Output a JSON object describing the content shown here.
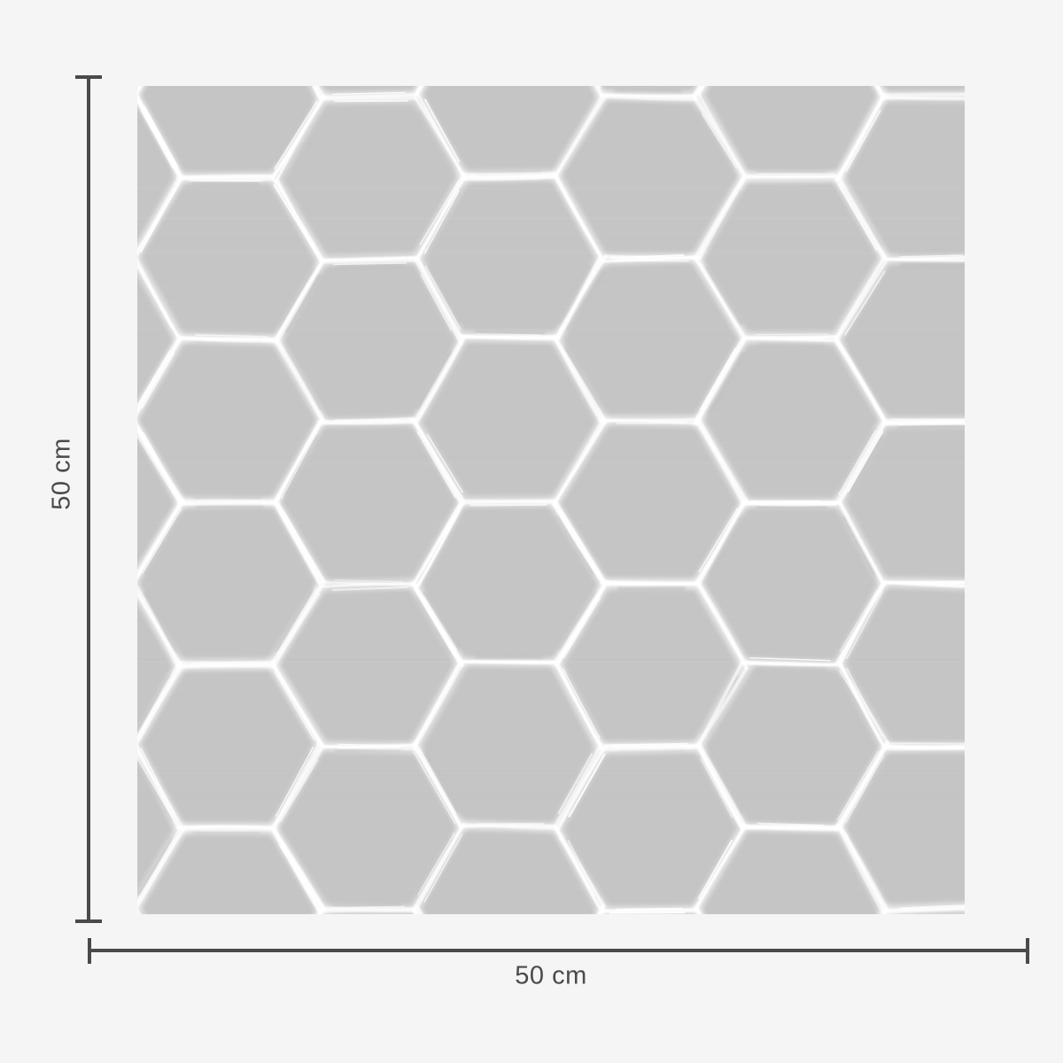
{
  "diagram": {
    "width_label": "50 cm",
    "height_label": "50 cm"
  },
  "swatch": {
    "pattern": "hexagon-tile",
    "tile_color": "#c5c5c5",
    "grout_color": "#ffffff",
    "shadow_color": "#a9a9a9"
  },
  "colors": {
    "background": "#f5f5f5",
    "dimension_line": "#4a4a4a",
    "label_text": "#4a4a4a"
  }
}
